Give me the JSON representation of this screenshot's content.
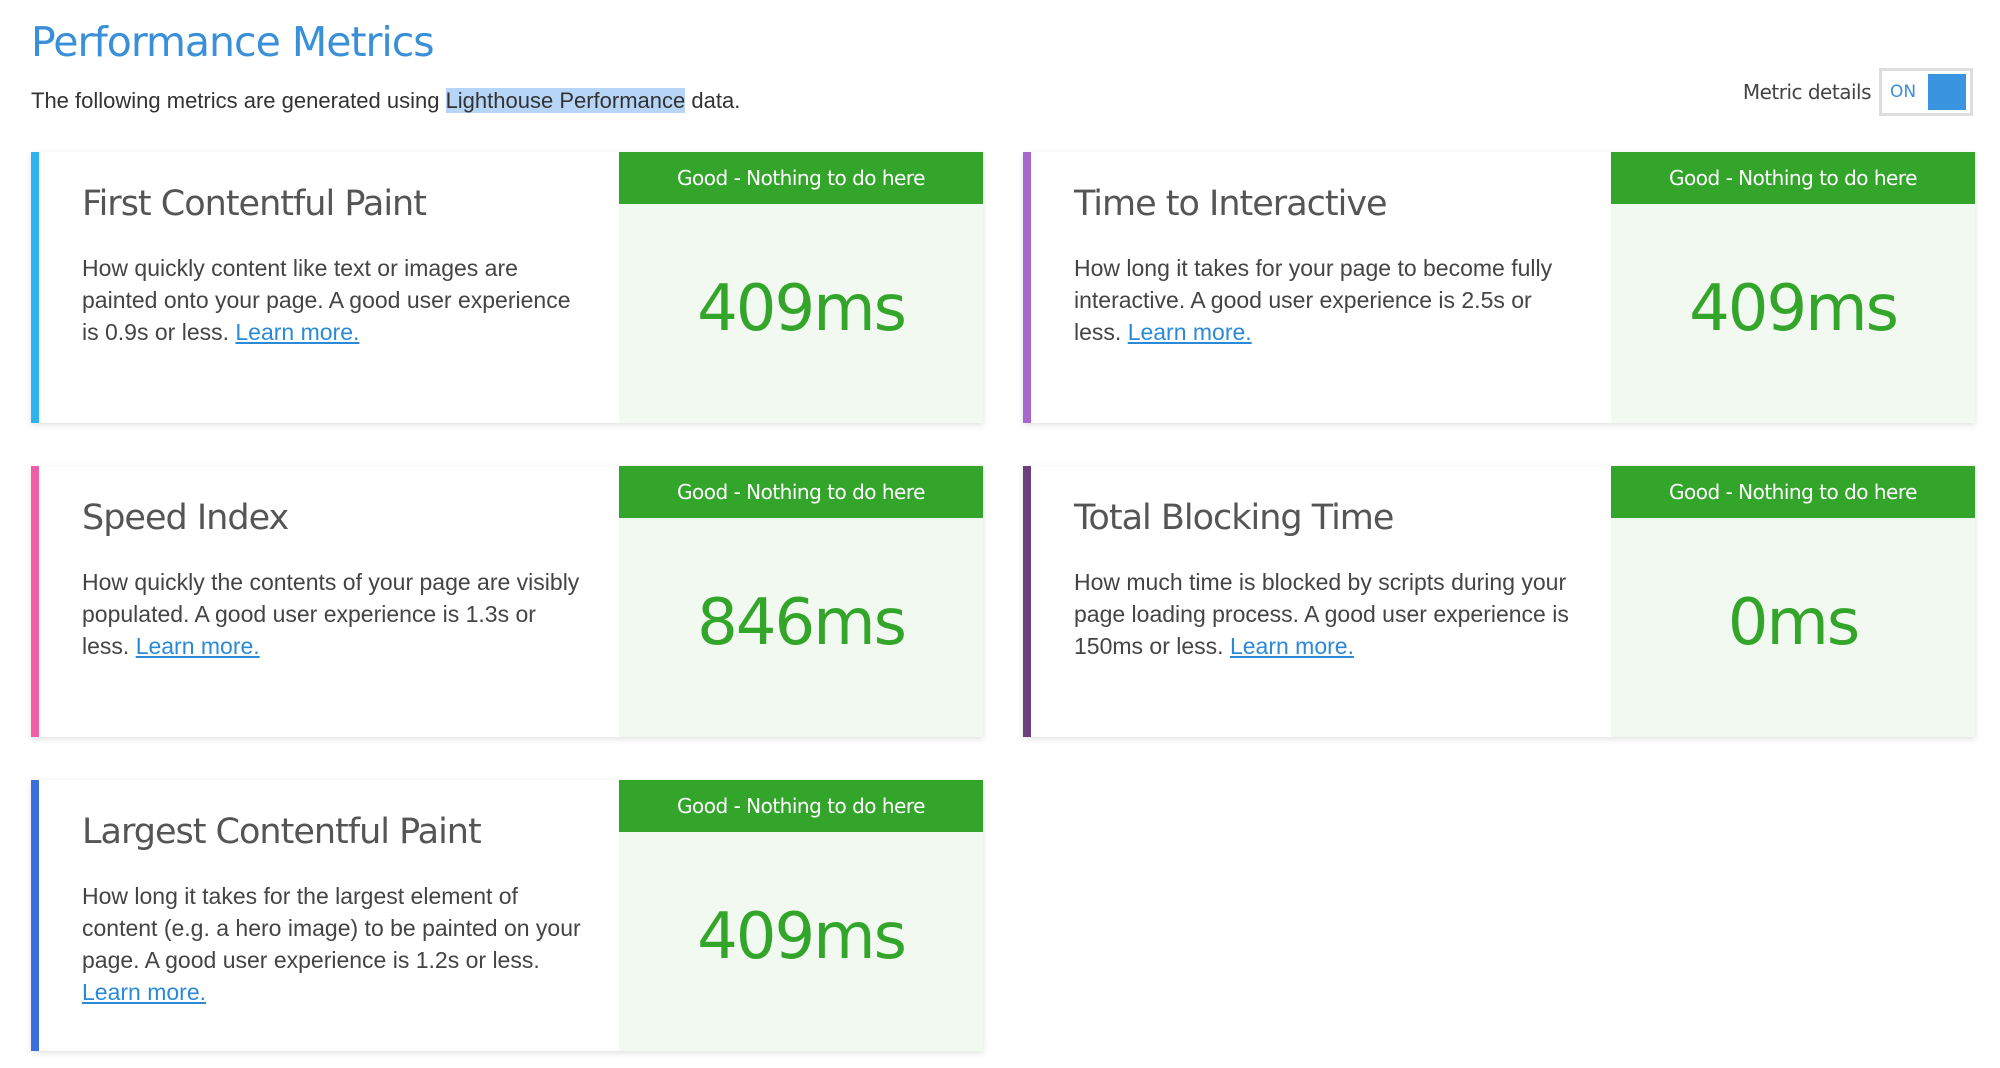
{
  "header": {
    "title": "Performance Metrics",
    "subtitle_pre": "The following metrics are generated using ",
    "subtitle_highlight": "Lighthouse Performance",
    "subtitle_post": " data."
  },
  "toggle": {
    "label": "Metric details",
    "state": "ON"
  },
  "colors": {
    "accent": "#3a8fd9",
    "good": "#34a52b",
    "good_bg": "#f2f9f0"
  },
  "metrics": [
    {
      "title": "First Contentful Paint",
      "description": "How quickly content like text or images are painted onto your page. A good user experience is 0.9s or less.",
      "link": "Learn more.",
      "badge": "Good - Nothing to do here",
      "value": "409ms",
      "border_color": "#2fb3f0"
    },
    {
      "title": "Time to Interactive",
      "description": "How long it takes for your page to become fully interactive. A good user experience is 2.5s or less.",
      "link": "Learn more.",
      "badge": "Good - Nothing to do here",
      "value": "409ms",
      "border_color": "#a966cc"
    },
    {
      "title": "Speed Index",
      "description": "How quickly the contents of your page are visibly populated. A good user experience is 1.3s or less.",
      "link": "Learn more.",
      "badge": "Good - Nothing to do here",
      "value": "846ms",
      "border_color": "#ee5fa5"
    },
    {
      "title": "Total Blocking Time",
      "description": "How much time is blocked by scripts during your page loading process. A good user experience is 150ms or less.",
      "link": "Learn more.",
      "badge": "Good - Nothing to do here",
      "value": "0ms",
      "border_color": "#6b3f80"
    },
    {
      "title": "Largest Contentful Paint",
      "description": "How long it takes for the largest element of content (e.g. a hero image) to be painted on your page. A good user experience is 1.2s or less.",
      "link": "Learn more.",
      "badge": "Good - Nothing to do here",
      "value": "409ms",
      "border_color": "#3a6fdc"
    }
  ]
}
